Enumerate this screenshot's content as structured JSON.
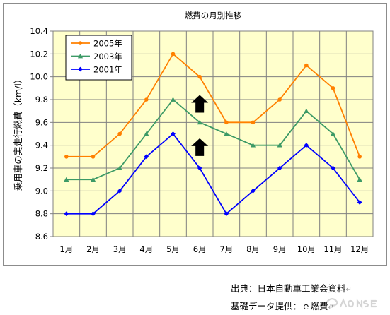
{
  "chart_data": {
    "type": "line",
    "title": "燃費の月別推移",
    "ylabel": "乗用車の実走行燃費（km/l）",
    "categories": [
      "1月",
      "2月",
      "3月",
      "4月",
      "5月",
      "6月",
      "7月",
      "8月",
      "9月",
      "10月",
      "11月",
      "12月"
    ],
    "ylim": [
      8.6,
      10.4
    ],
    "yticks": [
      "8.6",
      "8.8",
      "9.0",
      "9.2",
      "9.4",
      "9.6",
      "9.8",
      "10.0",
      "10.2",
      "10.4"
    ],
    "grid": true,
    "legend": "top-left",
    "series": [
      {
        "name": "2005年",
        "color": "#ff8000",
        "marker": "circle",
        "values": [
          9.3,
          9.3,
          9.5,
          9.8,
          10.2,
          10.0,
          9.6,
          9.6,
          9.8,
          10.1,
          9.9,
          9.3
        ]
      },
      {
        "name": "2003年",
        "color": "#3c9a66",
        "marker": "triangle",
        "values": [
          9.1,
          9.1,
          9.2,
          9.5,
          9.8,
          9.6,
          9.5,
          9.4,
          9.4,
          9.7,
          9.5,
          9.1
        ]
      },
      {
        "name": "2001年",
        "color": "#0000ff",
        "marker": "diamond",
        "values": [
          8.8,
          8.8,
          9.0,
          9.3,
          9.5,
          9.2,
          8.8,
          9.0,
          9.2,
          9.4,
          9.2,
          8.9
        ]
      }
    ],
    "annotations": [
      {
        "type": "up-arrow",
        "category": "6月",
        "y": 9.76
      },
      {
        "type": "up-arrow",
        "category": "6月",
        "y": 9.38
      }
    ]
  },
  "source": {
    "line1": "出典：日本自動車工業会資料",
    "line2": "基礎データ提供：ｅ燃費",
    "return_mark": "↵"
  },
  "watermark_icon": "response-logo-icon"
}
